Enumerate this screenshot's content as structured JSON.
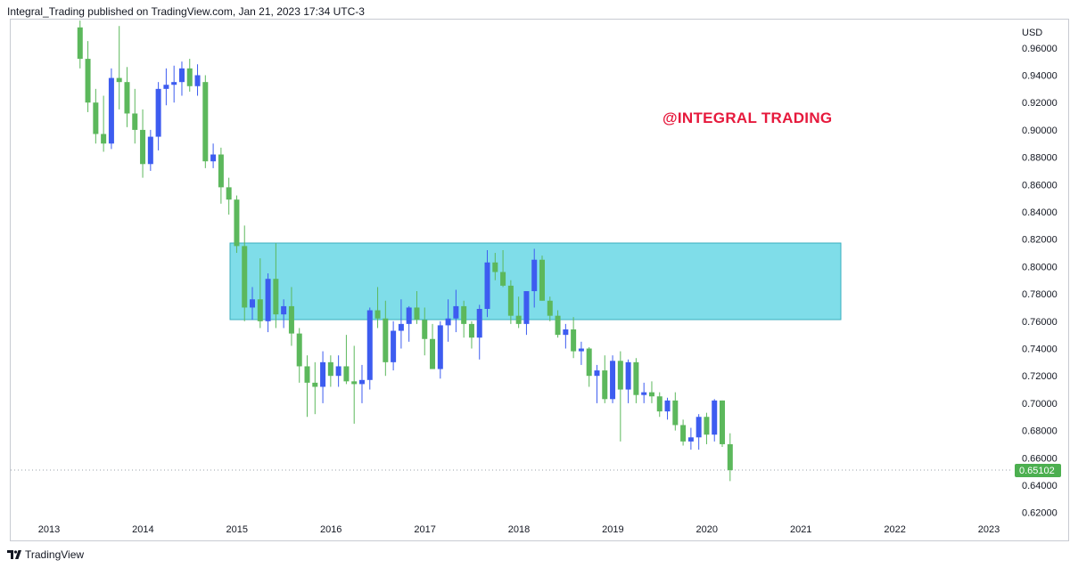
{
  "header": {
    "text": "Integral_Trading published on TradingView.com, Jan 21, 2023 17:34 UTC-3"
  },
  "footer": {
    "brand": "TradingView"
  },
  "chart_data": {
    "type": "candlestick",
    "interval": "monthly",
    "watermark": "@INTEGRAL TRADING",
    "currency_label": "USD",
    "last_price": "0.65102",
    "ylim": [
      0.612,
      0.976
    ],
    "xlim": [
      2013.0,
      2023.5
    ],
    "y_ticks": [
      "0.96000",
      "0.94000",
      "0.92000",
      "0.90000",
      "0.88000",
      "0.86000",
      "0.84000",
      "0.82000",
      "0.80000",
      "0.78000",
      "0.76000",
      "0.74000",
      "0.72000",
      "0.70000",
      "0.68000",
      "0.66000",
      "0.64000",
      "0.62000"
    ],
    "x_ticks": [
      "2013",
      "2014",
      "2015",
      "2016",
      "2017",
      "2018",
      "2019",
      "2020",
      "2021",
      "2022",
      "2023"
    ],
    "zone": {
      "price_top": 0.817,
      "price_bottom": 0.761,
      "from": "2015-01",
      "to": "2021-07"
    },
    "colors": {
      "up": "#3d5cf0",
      "down": "#5cb85c",
      "zone": "#7fdde9",
      "zone_border": "#3aaebe",
      "watermark": "#e6193c",
      "price_badge": "#4caf50"
    },
    "candles_ohlc": [
      [
        0.975,
        0.98,
        0.945,
        0.952
      ],
      [
        0.952,
        0.965,
        0.913,
        0.92
      ],
      [
        0.92,
        0.93,
        0.89,
        0.897
      ],
      [
        0.897,
        0.925,
        0.884,
        0.89
      ],
      [
        0.89,
        0.945,
        0.886,
        0.938
      ],
      [
        0.938,
        0.976,
        0.915,
        0.935
      ],
      [
        0.935,
        0.946,
        0.902,
        0.912
      ],
      [
        0.912,
        0.93,
        0.89,
        0.9
      ],
      [
        0.9,
        0.915,
        0.865,
        0.875
      ],
      [
        0.875,
        0.9,
        0.87,
        0.895
      ],
      [
        0.895,
        0.935,
        0.885,
        0.93
      ],
      [
        0.93,
        0.945,
        0.918,
        0.933
      ],
      [
        0.933,
        0.947,
        0.92,
        0.935
      ],
      [
        0.935,
        0.95,
        0.925,
        0.945
      ],
      [
        0.945,
        0.952,
        0.928,
        0.932
      ],
      [
        0.932,
        0.948,
        0.925,
        0.94
      ],
      [
        0.935,
        0.94,
        0.872,
        0.877
      ],
      [
        0.877,
        0.89,
        0.872,
        0.882
      ],
      [
        0.882,
        0.887,
        0.846,
        0.858
      ],
      [
        0.858,
        0.865,
        0.838,
        0.849
      ],
      [
        0.849,
        0.852,
        0.81,
        0.815
      ],
      [
        0.815,
        0.83,
        0.76,
        0.77
      ],
      [
        0.77,
        0.785,
        0.761,
        0.776
      ],
      [
        0.776,
        0.806,
        0.755,
        0.76
      ],
      [
        0.76,
        0.795,
        0.752,
        0.791
      ],
      [
        0.791,
        0.817,
        0.755,
        0.765
      ],
      [
        0.765,
        0.776,
        0.755,
        0.771
      ],
      [
        0.771,
        0.785,
        0.742,
        0.751
      ],
      [
        0.751,
        0.755,
        0.715,
        0.727
      ],
      [
        0.727,
        0.735,
        0.69,
        0.715
      ],
      [
        0.715,
        0.73,
        0.692,
        0.712
      ],
      [
        0.712,
        0.738,
        0.7,
        0.73
      ],
      [
        0.73,
        0.735,
        0.712,
        0.72
      ],
      [
        0.72,
        0.735,
        0.712,
        0.727
      ],
      [
        0.727,
        0.75,
        0.714,
        0.716
      ],
      [
        0.716,
        0.742,
        0.685,
        0.714
      ],
      [
        0.714,
        0.728,
        0.7,
        0.717
      ],
      [
        0.717,
        0.77,
        0.71,
        0.768
      ],
      [
        0.768,
        0.785,
        0.755,
        0.762
      ],
      [
        0.762,
        0.775,
        0.72,
        0.73
      ],
      [
        0.73,
        0.76,
        0.724,
        0.753
      ],
      [
        0.753,
        0.776,
        0.74,
        0.758
      ],
      [
        0.758,
        0.771,
        0.745,
        0.77
      ],
      [
        0.77,
        0.782,
        0.758,
        0.761
      ],
      [
        0.761,
        0.77,
        0.735,
        0.747
      ],
      [
        0.747,
        0.758,
        0.725,
        0.725
      ],
      [
        0.725,
        0.76,
        0.718,
        0.757
      ],
      [
        0.757,
        0.776,
        0.745,
        0.762
      ],
      [
        0.762,
        0.783,
        0.752,
        0.771
      ],
      [
        0.771,
        0.775,
        0.748,
        0.758
      ],
      [
        0.758,
        0.76,
        0.74,
        0.748
      ],
      [
        0.748,
        0.772,
        0.732,
        0.769
      ],
      [
        0.769,
        0.812,
        0.763,
        0.803
      ],
      [
        0.803,
        0.81,
        0.79,
        0.796
      ],
      [
        0.796,
        0.812,
        0.785,
        0.786
      ],
      [
        0.786,
        0.79,
        0.758,
        0.764
      ],
      [
        0.764,
        0.778,
        0.755,
        0.758
      ],
      [
        0.758,
        0.782,
        0.75,
        0.782
      ],
      [
        0.782,
        0.813,
        0.77,
        0.805
      ],
      [
        0.805,
        0.808,
        0.775,
        0.775
      ],
      [
        0.775,
        0.778,
        0.76,
        0.764
      ],
      [
        0.764,
        0.768,
        0.748,
        0.75
      ],
      [
        0.75,
        0.758,
        0.74,
        0.754
      ],
      [
        0.754,
        0.763,
        0.733,
        0.738
      ],
      [
        0.738,
        0.745,
        0.728,
        0.74
      ],
      [
        0.74,
        0.741,
        0.712,
        0.72
      ],
      [
        0.72,
        0.728,
        0.7,
        0.724
      ],
      [
        0.724,
        0.735,
        0.7,
        0.703
      ],
      [
        0.703,
        0.735,
        0.7,
        0.731
      ],
      [
        0.731,
        0.738,
        0.672,
        0.71
      ],
      [
        0.71,
        0.732,
        0.7,
        0.73
      ],
      [
        0.73,
        0.733,
        0.7,
        0.706
      ],
      [
        0.706,
        0.715,
        0.7,
        0.708
      ],
      [
        0.708,
        0.716,
        0.7,
        0.705
      ],
      [
        0.705,
        0.708,
        0.69,
        0.694
      ],
      [
        0.694,
        0.704,
        0.688,
        0.702
      ],
      [
        0.702,
        0.708,
        0.68,
        0.684
      ],
      [
        0.684,
        0.688,
        0.669,
        0.672
      ],
      [
        0.672,
        0.682,
        0.666,
        0.675
      ],
      [
        0.675,
        0.692,
        0.666,
        0.69
      ],
      [
        0.69,
        0.693,
        0.67,
        0.677
      ],
      [
        0.677,
        0.703,
        0.672,
        0.702
      ],
      [
        0.702,
        0.702,
        0.668,
        0.67
      ],
      [
        0.67,
        0.678,
        0.643,
        0.651
      ]
    ]
  }
}
